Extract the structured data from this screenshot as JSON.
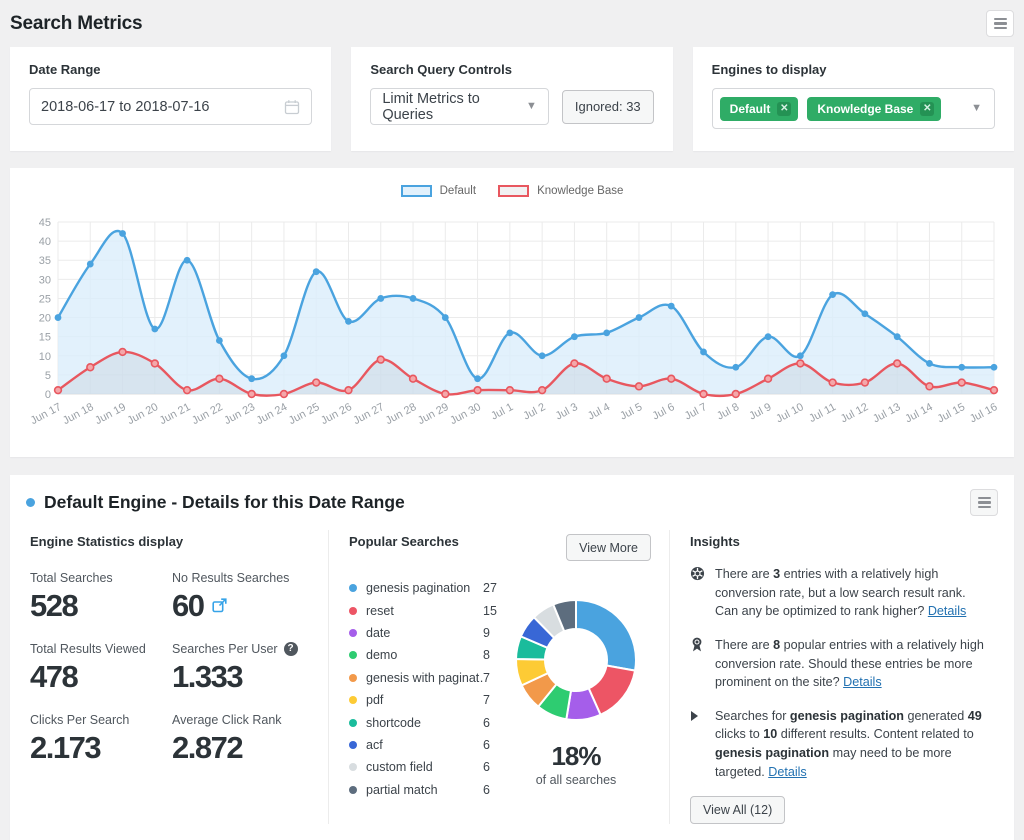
{
  "header": {
    "title": "Search Metrics"
  },
  "controls": {
    "date_range": {
      "label": "Date Range",
      "value": "2018-06-17 to 2018-07-16"
    },
    "query": {
      "label": "Search Query Controls",
      "select_value": "Limit Metrics to Queries",
      "ignored_label": "Ignored: 33"
    },
    "engines": {
      "label": "Engines to display",
      "tags": [
        "Default",
        "Knowledge Base"
      ],
      "tag_color": "#2fac66"
    }
  },
  "chart_data": [
    {
      "type": "line",
      "x": [
        "Jun 17",
        "Jun 18",
        "Jun 19",
        "Jun 20",
        "Jun 21",
        "Jun 22",
        "Jun 23",
        "Jun 24",
        "Jun 25",
        "Jun 26",
        "Jun 27",
        "Jun 28",
        "Jun 29",
        "Jun 30",
        "Jul 1",
        "Jul 2",
        "Jul 3",
        "Jul 4",
        "Jul 5",
        "Jul 6",
        "Jul 7",
        "Jul 8",
        "Jul 9",
        "Jul 10",
        "Jul 11",
        "Jul 12",
        "Jul 13",
        "Jul 14",
        "Jul 15",
        "Jul 16"
      ],
      "series": [
        {
          "name": "Default",
          "color": "#4aa3df",
          "fill": "rgba(219,238,251,0.8)",
          "point_style": "solid",
          "values": [
            20,
            34,
            42,
            17,
            35,
            14,
            4,
            10,
            32,
            19,
            25,
            25,
            20,
            4,
            16,
            10,
            15,
            16,
            20,
            23,
            11,
            7,
            15,
            10,
            26,
            21,
            15,
            8,
            7,
            7
          ]
        },
        {
          "name": "Knowledge Base",
          "color": "#e8575f",
          "fill": "rgba(120,120,130,0.10)",
          "point_style": "ring",
          "values": [
            1,
            7,
            11,
            8,
            1,
            4,
            0,
            0,
            3,
            1,
            9,
            4,
            0,
            1,
            1,
            1,
            8,
            4,
            2,
            4,
            0,
            0,
            4,
            8,
            3,
            3,
            8,
            2,
            3,
            1
          ]
        }
      ],
      "ylim": [
        0,
        45
      ],
      "ytick_step": 5,
      "grid": true,
      "legend_position": "top"
    },
    {
      "type": "pie",
      "title": "Popular Searches",
      "labels": [
        "genesis pagination",
        "reset",
        "date",
        "demo",
        "genesis with paginat…",
        "pdf",
        "shortcode",
        "acf",
        "custom field",
        "partial match"
      ],
      "values": [
        27,
        15,
        9,
        8,
        7,
        7,
        6,
        6,
        6,
        6
      ],
      "colors": [
        "#4aa3df",
        "#ed5565",
        "#a55eea",
        "#2ecc71",
        "#f2994a",
        "#fdcb35",
        "#1abc9c",
        "#3867d6",
        "#d8dde0",
        "#5d6d7e"
      ],
      "center_label": "18%",
      "center_sub": "of all searches"
    }
  ],
  "details": {
    "title": "Default Engine - Details for this Date Range",
    "stats": {
      "heading": "Engine Statistics display",
      "items": [
        {
          "label": "Total Searches",
          "value": "528"
        },
        {
          "label": "No Results Searches",
          "value": "60",
          "value_icon": "external-link"
        },
        {
          "label": "Total Results Viewed",
          "value": "478"
        },
        {
          "label": "Searches Per User",
          "value": "1.333",
          "label_icon": "question"
        },
        {
          "label": "Clicks Per Search",
          "value": "2.173"
        },
        {
          "label": "Average Click Rank",
          "value": "2.872"
        }
      ]
    },
    "popular": {
      "heading": "Popular Searches",
      "view_more_label": "View More",
      "center_label": "18%",
      "center_sub": "of all searches"
    },
    "insights": {
      "heading": "Insights",
      "view_all_label": "View All (12)",
      "items": [
        {
          "icon": "wheel",
          "segments": [
            {
              "t": "There are "
            },
            {
              "t": "3",
              "b": true
            },
            {
              "t": " entries with a relatively high conversion rate, but a low search result rank. Can any be optimized to rank higher? "
            }
          ],
          "link": "Details"
        },
        {
          "icon": "medal",
          "segments": [
            {
              "t": "There are "
            },
            {
              "t": "8",
              "b": true
            },
            {
              "t": " popular entries with a relatively high conversion rate. Should these entries be more prominent on the site? "
            }
          ],
          "link": "Details"
        },
        {
          "icon": "triangle",
          "segments": [
            {
              "t": "Searches for "
            },
            {
              "t": "genesis pagination",
              "b": true
            },
            {
              "t": " generated "
            },
            {
              "t": "49",
              "b": true
            },
            {
              "t": " clicks to "
            },
            {
              "t": "10",
              "b": true
            },
            {
              "t": " different results. Content related to "
            },
            {
              "t": "genesis pagination",
              "b": true
            },
            {
              "t": " may need to be more targeted. "
            }
          ],
          "link": "Details"
        }
      ]
    }
  }
}
